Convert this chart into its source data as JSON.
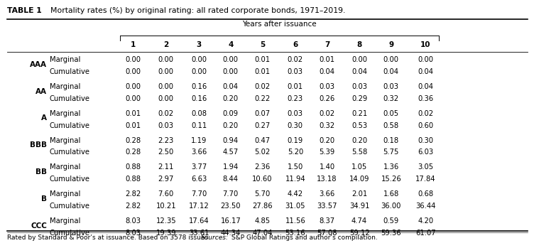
{
  "title_bold": "TABLE 1",
  "title_rest": "  Mortality rates (%) by original rating: all rated corporate bonds, 1971–2019.",
  "col_header_group": "Years after issuance",
  "col_headers": [
    "1",
    "2",
    "3",
    "4",
    "5",
    "6",
    "7",
    "8",
    "9",
    "10"
  ],
  "ratings": [
    "AAA",
    "AA",
    "A",
    "BBB",
    "BB",
    "B",
    "CCC"
  ],
  "row_types": [
    "Marginal",
    "Cumulative"
  ],
  "footer_normal": "Rated by Standard & Poor’s at issuance. Based on 3578 issues. ",
  "footer_italic": "Sources:",
  "footer_end": " S&P Global Ratings and author’s compilation.",
  "data": {
    "AAA": {
      "Marginal": [
        "0.00",
        "0.00",
        "0.00",
        "0.00",
        "0.01",
        "0.02",
        "0.01",
        "0.00",
        "0.00",
        "0.00"
      ],
      "Cumulative": [
        "0.00",
        "0.00",
        "0.00",
        "0.00",
        "0.01",
        "0.03",
        "0.04",
        "0.04",
        "0.04",
        "0.04"
      ]
    },
    "AA": {
      "Marginal": [
        "0.00",
        "0.00",
        "0.16",
        "0.04",
        "0.02",
        "0.01",
        "0.03",
        "0.03",
        "0.03",
        "0.04"
      ],
      "Cumulative": [
        "0.00",
        "0.00",
        "0.16",
        "0.20",
        "0.22",
        "0.23",
        "0.26",
        "0.29",
        "0.32",
        "0.36"
      ]
    },
    "A": {
      "Marginal": [
        "0.01",
        "0.02",
        "0.08",
        "0.09",
        "0.07",
        "0.03",
        "0.02",
        "0.21",
        "0.05",
        "0.02"
      ],
      "Cumulative": [
        "0.01",
        "0.03",
        "0.11",
        "0.20",
        "0.27",
        "0.30",
        "0.32",
        "0.53",
        "0.58",
        "0.60"
      ]
    },
    "BBB": {
      "Marginal": [
        "0.28",
        "2.23",
        "1.19",
        "0.94",
        "0.47",
        "0.19",
        "0.20",
        "0.20",
        "0.18",
        "0.30"
      ],
      "Cumulative": [
        "0.28",
        "2.50",
        "3.66",
        "4.57",
        "5.02",
        "5.20",
        "5.39",
        "5.58",
        "5.75",
        "6.03"
      ]
    },
    "BB": {
      "Marginal": [
        "0.88",
        "2.11",
        "3.77",
        "1.94",
        "2.36",
        "1.50",
        "1.40",
        "1.05",
        "1.36",
        "3.05"
      ],
      "Cumulative": [
        "0.88",
        "2.97",
        "6.63",
        "8.44",
        "10.60",
        "11.94",
        "13.18",
        "14.09",
        "15.26",
        "17.84"
      ]
    },
    "B": {
      "Marginal": [
        "2.82",
        "7.60",
        "7.70",
        "7.70",
        "5.70",
        "4.42",
        "3.66",
        "2.01",
        "1.68",
        "0.68"
      ],
      "Cumulative": [
        "2.82",
        "10.21",
        "17.12",
        "23.50",
        "27.86",
        "31.05",
        "33.57",
        "34.91",
        "36.00",
        "36.44"
      ]
    },
    "CCC": {
      "Marginal": [
        "8.03",
        "12.35",
        "17.64",
        "16.17",
        "4.85",
        "11.56",
        "8.37",
        "4.74",
        "0.59",
        "4.20"
      ],
      "Cumulative": [
        "8.03",
        "19.39",
        "33.61",
        "44.34",
        "47.04",
        "53.16",
        "57.08",
        "59.12",
        "59.36",
        "61.07"
      ]
    }
  }
}
